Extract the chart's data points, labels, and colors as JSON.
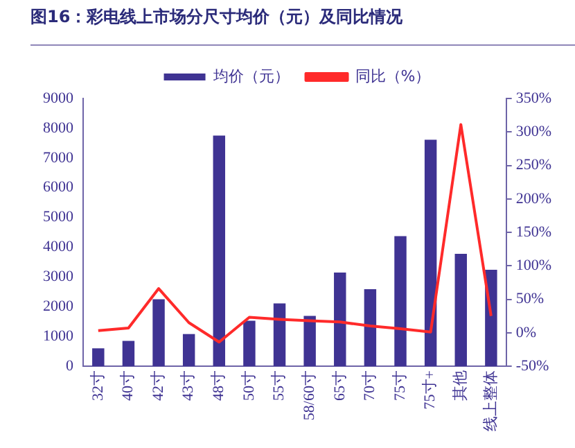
{
  "chart_data": {
    "type": "bar",
    "title": "图16：彩电线上市场分尺寸均价（元）及同比情况",
    "categories": [
      "32寸",
      "40寸",
      "42寸",
      "43寸",
      "48寸",
      "50寸",
      "55寸",
      "58/60寸",
      "65寸",
      "70寸",
      "75寸",
      "75寸+",
      "其他",
      "线上整体"
    ],
    "series": [
      {
        "name": "均价（元）",
        "color": "#3f3393",
        "values": [
          600,
          850,
          2250,
          1080,
          7750,
          1530,
          2110,
          1690,
          3150,
          2590,
          4370,
          7610,
          3780,
          3240
        ]
      },
      {
        "name": "同比（%）",
        "type": "line",
        "axis": "y2",
        "color": "#ff2a2a",
        "values": [
          3,
          7,
          66,
          15,
          -14,
          23,
          20,
          18,
          16,
          10,
          6,
          1,
          311,
          25
        ]
      }
    ],
    "ylim": [
      0,
      9000
    ],
    "yticks": [
      0,
      1000,
      2000,
      3000,
      4000,
      5000,
      6000,
      7000,
      8000,
      9000
    ],
    "y2lim": [
      -50,
      350
    ],
    "y2ticks": [
      {
        "value": -50,
        "label": "-50%"
      },
      {
        "value": 0,
        "label": "0%"
      },
      {
        "value": 50,
        "label": "50%"
      },
      {
        "value": 100,
        "label": "100%"
      },
      {
        "value": 150,
        "label": "150%"
      },
      {
        "value": 200,
        "label": "200%"
      },
      {
        "value": 250,
        "label": "250%"
      },
      {
        "value": 300,
        "label": "300%"
      },
      {
        "value": 350,
        "label": "350%"
      }
    ],
    "grid": false,
    "legend": "top",
    "marker": "none",
    "line_style": "solid"
  }
}
